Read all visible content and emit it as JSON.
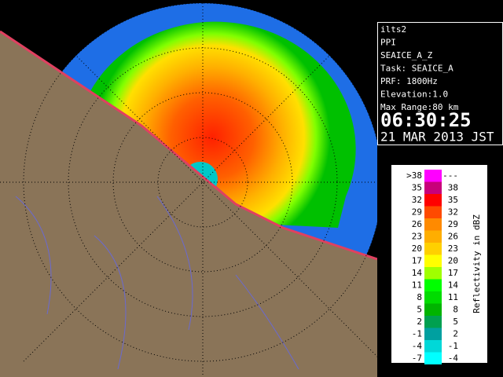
{
  "info_panel": {
    "lines": [
      "ilts2",
      "PPI",
      "SEAICE_A_Z",
      "Task: SEAICE_A",
      "PRF: 1800Hz",
      "Elevation:1.0",
      "Max Range:80 km"
    ],
    "time": "06:30:25",
    "date": "21 MAR 2013 JST"
  },
  "legend": {
    "title": "Reflectivity in dBZ",
    "rows": [
      {
        "low": ">38",
        "high": "---",
        "color": "#ff00ff"
      },
      {
        "low": "35",
        "high": "38",
        "color": "#c8007a"
      },
      {
        "low": "32",
        "high": "35",
        "color": "#ff0000"
      },
      {
        "low": "29",
        "high": "32",
        "color": "#ff4a00"
      },
      {
        "low": "26",
        "high": "29",
        "color": "#ff8a00"
      },
      {
        "low": "23",
        "high": "26",
        "color": "#ffae00"
      },
      {
        "low": "20",
        "high": "23",
        "color": "#ffd000"
      },
      {
        "low": "17",
        "high": "20",
        "color": "#ffff00"
      },
      {
        "low": "14",
        "high": "17",
        "color": "#a0ff00"
      },
      {
        "low": "11",
        "high": "14",
        "color": "#00ff00"
      },
      {
        "low": "8",
        "high": "11",
        "color": "#00dc00"
      },
      {
        "low": "5",
        "high": "8",
        "color": "#00b400"
      },
      {
        "low": "2",
        "high": "5",
        "color": "#00a050"
      },
      {
        "low": "-1",
        "high": "2",
        "color": "#00a0a0"
      },
      {
        "low": "-4",
        "high": "-1",
        "color": "#00d8d8"
      },
      {
        "low": "-7",
        "high": "-4",
        "color": "#00ffff"
      }
    ]
  }
}
